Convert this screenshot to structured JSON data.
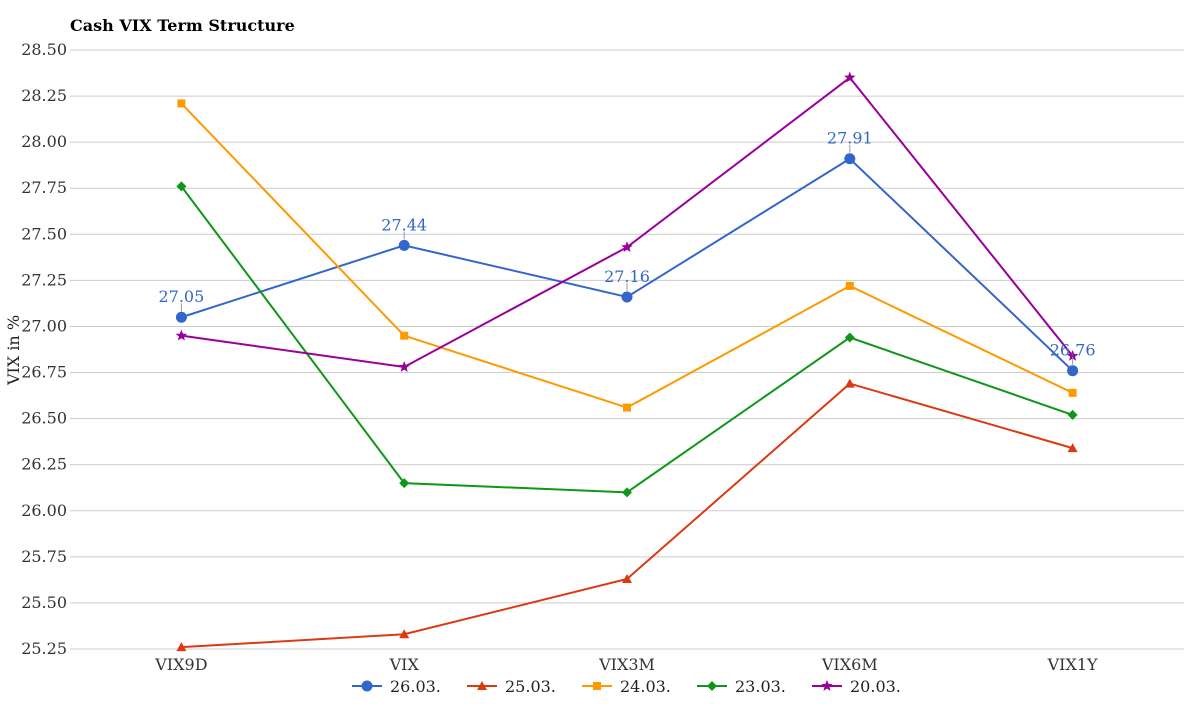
{
  "chart_data": {
    "type": "line",
    "title": "Cash VIX Term Structure",
    "xlabel": "",
    "ylabel": "VIX in %",
    "categories": [
      "VIX9D",
      "VIX",
      "VIX3M",
      "VIX6M",
      "VIX1Y"
    ],
    "ylim": [
      25.25,
      28.5
    ],
    "yticks": [
      "25.25",
      "25.50",
      "25.75",
      "26.00",
      "26.25",
      "26.50",
      "26.75",
      "27.00",
      "27.25",
      "27.50",
      "27.75",
      "28.00",
      "28.25",
      "28.50"
    ],
    "grid": true,
    "legend_position": "bottom",
    "series": [
      {
        "name": "26.03.",
        "color": "#3366cc",
        "marker": "circle",
        "values": [
          27.05,
          27.44,
          27.16,
          27.91,
          26.76
        ],
        "labels": [
          "27.05",
          "27.44",
          "27.16",
          "27.91",
          "26.76"
        ]
      },
      {
        "name": "25.03.",
        "color": "#dc3912",
        "marker": "triangle",
        "values": [
          25.26,
          25.33,
          25.63,
          26.69,
          26.34
        ]
      },
      {
        "name": "24.03.",
        "color": "#ff9900",
        "marker": "square",
        "values": [
          28.21,
          26.95,
          26.56,
          27.22,
          26.64
        ]
      },
      {
        "name": "23.03.",
        "color": "#109618",
        "marker": "diamond",
        "values": [
          27.76,
          26.15,
          26.1,
          26.94,
          26.52
        ]
      },
      {
        "name": "20.03.",
        "color": "#990099",
        "marker": "star",
        "values": [
          26.95,
          26.78,
          27.43,
          28.35,
          26.84
        ]
      }
    ]
  }
}
